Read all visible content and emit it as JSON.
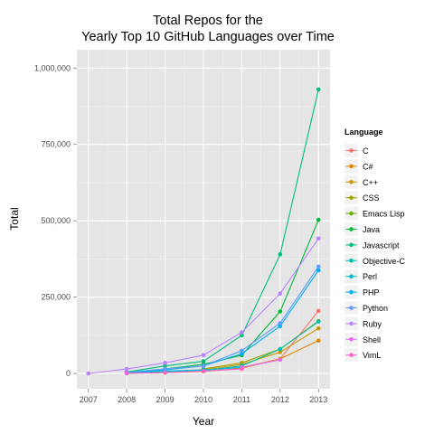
{
  "chart_data": {
    "type": "line",
    "title_lines": [
      "Total Repos for the",
      "Yearly Top 10 GitHub Languages over Time"
    ],
    "xlabel": "Year",
    "ylabel": "Total",
    "x": [
      2007,
      2008,
      2009,
      2010,
      2011,
      2012,
      2013
    ],
    "xlim": [
      2006.7,
      2013.3
    ],
    "ylim": [
      -50000,
      1060000
    ],
    "yticks": [
      0,
      250000,
      500000,
      750000,
      1000000
    ],
    "ytick_labels": [
      "0",
      "250,000",
      "500,000",
      "750,000",
      "1,000,000"
    ],
    "grid": true,
    "legend_position": "right",
    "legend_title": "Language",
    "series": [
      {
        "name": "C",
        "color": "#F8766D",
        "values": [
          null,
          2000,
          6000,
          12000,
          20000,
          48000,
          205000
        ]
      },
      {
        "name": "C#",
        "color": "#E58700",
        "values": [
          null,
          1000,
          3000,
          7000,
          17000,
          48000,
          108000
        ]
      },
      {
        "name": "C++",
        "color": "#C99800",
        "values": [
          null,
          2000,
          6000,
          12000,
          30000,
          70000,
          148000
        ]
      },
      {
        "name": "CSS",
        "color": "#A3A500",
        "values": [
          null,
          null,
          null,
          15000,
          35000,
          80000,
          172000
        ]
      },
      {
        "name": "Emacs Lisp",
        "color": "#6BB100",
        "values": [
          null,
          1000,
          null,
          null,
          null,
          null,
          null
        ]
      },
      {
        "name": "Java",
        "color": "#00BA38",
        "values": [
          null,
          4000,
          15000,
          30000,
          60000,
          203000,
          503000
        ]
      },
      {
        "name": "Javascript",
        "color": "#00BF7D",
        "values": [
          null,
          5000,
          25000,
          40000,
          125000,
          390000,
          930000
        ]
      },
      {
        "name": "Objective-C",
        "color": "#00C0AF",
        "values": [
          null,
          1000,
          5000,
          10000,
          25000,
          80000,
          170000
        ]
      },
      {
        "name": "Perl",
        "color": "#00BCD8",
        "values": [
          null,
          3000,
          8000,
          12000,
          20000,
          null,
          null
        ]
      },
      {
        "name": "PHP",
        "color": "#00B0F6",
        "values": [
          null,
          3000,
          12000,
          25000,
          65000,
          155000,
          338000
        ]
      },
      {
        "name": "Python",
        "color": "#619CFF",
        "values": [
          null,
          4000,
          15000,
          25000,
          75000,
          165000,
          350000
        ]
      },
      {
        "name": "Ruby",
        "color": "#B983FF",
        "values": [
          0,
          15000,
          35000,
          60000,
          135000,
          262000,
          442000
        ]
      },
      {
        "name": "Shell",
        "color": "#E76BF3",
        "values": [
          null,
          null,
          null,
          null,
          20000,
          45000,
          null
        ]
      },
      {
        "name": "VimL",
        "color": "#FD61D1",
        "values": [
          null,
          1000,
          3000,
          8000,
          15000,
          null,
          null
        ]
      }
    ]
  }
}
